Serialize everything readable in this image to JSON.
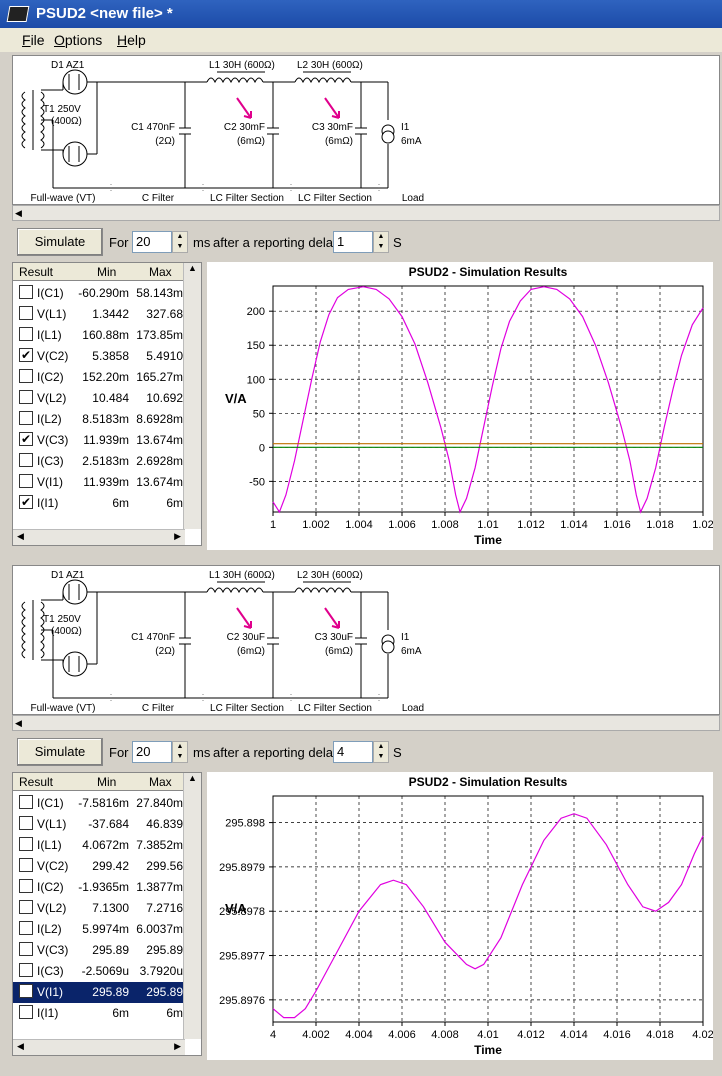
{
  "window": {
    "title": "PSUD2  <new file> *"
  },
  "menu": [
    {
      "label": "File",
      "u": "F",
      "rest": "ile"
    },
    {
      "label": "Options",
      "u": "O",
      "rest": "ptions"
    },
    {
      "label": "Help",
      "u": "H",
      "rest": "elp"
    }
  ],
  "panels": [
    {
      "schematic": {
        "d1": "D1 AZ1",
        "t1": "T1 250V",
        "t1r": "(400Ω)",
        "l1": "L1 30H (600Ω)",
        "l2": "L2 30H (600Ω)",
        "c1": "C1 470nF",
        "c1r": "(2Ω)",
        "c2": "C2 30mF",
        "c2r": "(6mΩ)",
        "c3": "C3 30mF",
        "c3r": "(6mΩ)",
        "i1": "I1",
        "i1v": "6mA",
        "sections": [
          "Full-wave (VT)",
          "C Filter",
          "LC Filter Section",
          "LC Filter Section",
          "Load"
        ]
      },
      "controls": {
        "simulate": "Simulate",
        "for": "For",
        "ms_value": "20",
        "ms": "ms",
        "after": "after a reporting delay of",
        "delay_value": "1",
        "s": "S"
      },
      "list": {
        "headers": [
          "Result",
          "Min",
          "Max"
        ],
        "rows": [
          {
            "checked": false,
            "name": "I(C1)",
            "min": "-60.290m",
            "max": "58.143m",
            "selected": false
          },
          {
            "checked": false,
            "name": "V(L1)",
            "min": "1.3442",
            "max": "327.68",
            "selected": false
          },
          {
            "checked": false,
            "name": "I(L1)",
            "min": "160.88m",
            "max": "173.85m",
            "selected": false
          },
          {
            "checked": true,
            "name": "V(C2)",
            "min": "5.3858",
            "max": "5.4910",
            "selected": false
          },
          {
            "checked": false,
            "name": "I(C2)",
            "min": "152.20m",
            "max": "165.27m",
            "selected": false
          },
          {
            "checked": false,
            "name": "V(L2)",
            "min": "10.484",
            "max": "10.692",
            "selected": false
          },
          {
            "checked": false,
            "name": "I(L2)",
            "min": "8.5183m",
            "max": "8.6928m",
            "selected": false
          },
          {
            "checked": true,
            "name": "V(C3)",
            "min": "11.939m",
            "max": "13.674m",
            "selected": false
          },
          {
            "checked": false,
            "name": "I(C3)",
            "min": "2.5183m",
            "max": "2.6928m",
            "selected": false
          },
          {
            "checked": false,
            "name": "V(I1)",
            "min": "11.939m",
            "max": "13.674m",
            "selected": false
          },
          {
            "checked": true,
            "name": "I(I1)",
            "min": "6m",
            "max": "6m",
            "selected": false
          }
        ]
      },
      "chart_data": {
        "type": "line",
        "title": "PSUD2 - Simulation Results",
        "xlabel": "Time",
        "ylabel": "V/A",
        "xlim": [
          1,
          1.02
        ],
        "ylim": [
          -95,
          237
        ],
        "x_ticks": [
          "1",
          "1.002",
          "1.004",
          "1.006",
          "1.008",
          "1.01",
          "1.012",
          "1.014",
          "1.016",
          "1.018",
          "1.02"
        ],
        "y_ticks": [
          {
            "v": 200,
            "label": "200"
          },
          {
            "v": 150,
            "label": "150"
          },
          {
            "v": 100,
            "label": "100"
          },
          {
            "v": 50,
            "label": "50"
          },
          {
            "v": 0,
            "label": "0"
          },
          {
            "v": -50,
            "label": "-50"
          }
        ],
        "grid": true,
        "series": [
          {
            "color": "#e000e0",
            "values": [
              [
                1,
                -80
              ],
              [
                1.0003,
                -95
              ],
              [
                1.0006,
                -70
              ],
              [
                1.001,
                -20
              ],
              [
                1.0014,
                40
              ],
              [
                1.0018,
                100
              ],
              [
                1.0022,
                155
              ],
              [
                1.0026,
                195
              ],
              [
                1.003,
                220
              ],
              [
                1.0035,
                232
              ],
              [
                1.0042,
                236
              ],
              [
                1.0048,
                232
              ],
              [
                1.0054,
                218
              ],
              [
                1.006,
                192
              ],
              [
                1.0066,
                152
              ],
              [
                1.0072,
                95
              ],
              [
                1.0078,
                30
              ],
              [
                1.0082,
                -20
              ],
              [
                1.0085,
                -70
              ],
              [
                1.0087,
                -95
              ],
              [
                1.009,
                -75
              ],
              [
                1.0094,
                -30
              ],
              [
                1.0098,
                30
              ],
              [
                1.0102,
                90
              ],
              [
                1.0106,
                145
              ],
              [
                1.011,
                185
              ],
              [
                1.0115,
                215
              ],
              [
                1.012,
                232
              ],
              [
                1.0126,
                236
              ],
              [
                1.0132,
                232
              ],
              [
                1.0138,
                218
              ],
              [
                1.0144,
                192
              ],
              [
                1.015,
                150
              ],
              [
                1.0156,
                95
              ],
              [
                1.0162,
                30
              ],
              [
                1.0166,
                -20
              ],
              [
                1.0169,
                -70
              ],
              [
                1.0171,
                -95
              ],
              [
                1.0174,
                -75
              ],
              [
                1.0178,
                -30
              ],
              [
                1.0182,
                30
              ],
              [
                1.0186,
                85
              ],
              [
                1.019,
                135
              ],
              [
                1.0195,
                180
              ],
              [
                1.02,
                205
              ]
            ]
          },
          {
            "color": "#c07000",
            "values": [
              [
                1,
                5.4
              ],
              [
                1.02,
                5.4
              ]
            ]
          },
          {
            "color": "#008000",
            "values": [
              [
                1,
                0.013
              ],
              [
                1.02,
                0.013
              ]
            ]
          }
        ]
      }
    },
    {
      "schematic": {
        "d1": "D1 AZ1",
        "t1": "T1 250V",
        "t1r": "(400Ω)",
        "l1": "L1 30H (600Ω)",
        "l2": "L2 30H (600Ω)",
        "c1": "C1 470nF",
        "c1r": "(2Ω)",
        "c2": "C2 30uF",
        "c2r": "(6mΩ)",
        "c3": "C3 30uF",
        "c3r": "(6mΩ)",
        "i1": "I1",
        "i1v": "6mA",
        "sections": [
          "Full-wave (VT)",
          "C Filter",
          "LC Filter Section",
          "LC Filter Section",
          "Load"
        ]
      },
      "controls": {
        "simulate": "Simulate",
        "for": "For",
        "ms_value": "20",
        "ms": "ms",
        "after": "after a reporting delay of",
        "delay_value": "4",
        "s": "S"
      },
      "list": {
        "headers": [
          "Result",
          "Min",
          "Max"
        ],
        "rows": [
          {
            "checked": false,
            "name": "I(C1)",
            "min": "-7.5816m",
            "max": "27.840m",
            "selected": false
          },
          {
            "checked": false,
            "name": "V(L1)",
            "min": "-37.684",
            "max": "46.839",
            "selected": false
          },
          {
            "checked": false,
            "name": "I(L1)",
            "min": "4.0672m",
            "max": "7.3852m",
            "selected": false
          },
          {
            "checked": false,
            "name": "V(C2)",
            "min": "299.42",
            "max": "299.56",
            "selected": false
          },
          {
            "checked": false,
            "name": "I(C2)",
            "min": "-1.9365m",
            "max": "1.3877m",
            "selected": false
          },
          {
            "checked": false,
            "name": "V(L2)",
            "min": "7.1300",
            "max": "7.2716",
            "selected": false
          },
          {
            "checked": false,
            "name": "I(L2)",
            "min": "5.9974m",
            "max": "6.0037m",
            "selected": false
          },
          {
            "checked": false,
            "name": "V(C3)",
            "min": "295.89",
            "max": "295.89",
            "selected": false
          },
          {
            "checked": false,
            "name": "I(C3)",
            "min": "-2.5069u",
            "max": "3.7920u",
            "selected": false
          },
          {
            "checked": true,
            "name": "V(I1)",
            "min": "295.89",
            "max": "295.89",
            "selected": true
          },
          {
            "checked": false,
            "name": "I(I1)",
            "min": "6m",
            "max": "6m",
            "selected": false
          }
        ]
      },
      "chart_data": {
        "type": "line",
        "title": "PSUD2 - Simulation Results",
        "xlabel": "Time",
        "ylabel": "V/A",
        "xlim": [
          4,
          4.02
        ],
        "ylim": [
          295.89755,
          295.89806
        ],
        "x_ticks": [
          "4",
          "4.002",
          "4.004",
          "4.006",
          "4.008",
          "4.01",
          "4.012",
          "4.014",
          "4.016",
          "4.018",
          "4.02"
        ],
        "y_ticks": [
          {
            "v": 295.898,
            "label": "295.898"
          },
          {
            "v": 295.8979,
            "label": "295.8979"
          },
          {
            "v": 295.8978,
            "label": "295.8978"
          },
          {
            "v": 295.8977,
            "label": "295.8977"
          },
          {
            "v": 295.8976,
            "label": "295.8976"
          }
        ],
        "grid": true,
        "series": [
          {
            "color": "#e000e0",
            "values": [
              [
                4,
                295.89758
              ],
              [
                4.0005,
                295.89756
              ],
              [
                4.001,
                295.89756
              ],
              [
                4.0015,
                295.89758
              ],
              [
                4.002,
                295.89762
              ],
              [
                4.003,
                295.89771
              ],
              [
                4.004,
                295.8978
              ],
              [
                4.005,
                295.89786
              ],
              [
                4.0056,
                295.89787
              ],
              [
                4.0062,
                295.89786
              ],
              [
                4.007,
                295.89781
              ],
              [
                4.008,
                295.89773
              ],
              [
                4.009,
                295.89768
              ],
              [
                4.0094,
                295.89767
              ],
              [
                4.0098,
                295.89768
              ],
              [
                4.0106,
                295.89774
              ],
              [
                4.0116,
                295.89786
              ],
              [
                4.0126,
                295.89796
              ],
              [
                4.0134,
                295.89801
              ],
              [
                4.014,
                295.89802
              ],
              [
                4.0146,
                295.89801
              ],
              [
                4.0155,
                295.89795
              ],
              [
                4.0165,
                295.89786
              ],
              [
                4.0172,
                295.89781
              ],
              [
                4.0178,
                295.8978
              ],
              [
                4.0184,
                295.89782
              ],
              [
                4.019,
                295.89786
              ],
              [
                4.0196,
                295.89793
              ],
              [
                4.02,
                295.89797
              ]
            ]
          }
        ]
      }
    }
  ]
}
